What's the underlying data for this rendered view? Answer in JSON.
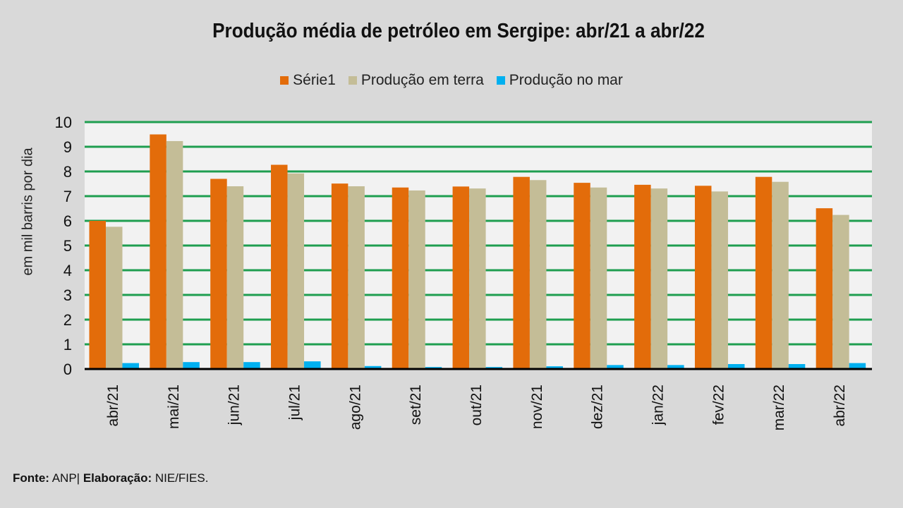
{
  "chart_data": {
    "type": "bar",
    "title": "Produção média de petróleo em Sergipe:  abr/21 a abr/22",
    "xlabel": "",
    "ylabel": "em mil barris por dia",
    "ylim": [
      0,
      10
    ],
    "yticks": [
      "0",
      "1",
      "2",
      "3",
      "4",
      "5",
      "6",
      "7",
      "8",
      "9",
      "10"
    ],
    "grid": true,
    "legend_position": "top",
    "categories": [
      "abr/21",
      "mai/21",
      "jun/21",
      "jul/21",
      "ago/21",
      "set/21",
      "out/21",
      "nov/21",
      "dez/21",
      "jan/22",
      "fev/22",
      "mar/22",
      "abr/22"
    ],
    "series": [
      {
        "name": "Série1",
        "color": "#e36c0a",
        "values": [
          6.0,
          9.5,
          7.7,
          8.27,
          7.51,
          7.35,
          7.39,
          7.78,
          7.54,
          7.46,
          7.42,
          7.78,
          6.51
        ]
      },
      {
        "name": "Produção em terra",
        "color": "#c4bd97",
        "values": [
          5.76,
          9.23,
          7.4,
          7.92,
          7.4,
          7.23,
          7.31,
          7.65,
          7.35,
          7.31,
          7.19,
          7.58,
          6.24
        ]
      },
      {
        "name": "Produção no mar",
        "color": "#00b0f0",
        "values": [
          0.24,
          0.28,
          0.28,
          0.31,
          0.12,
          0.08,
          0.08,
          0.11,
          0.16,
          0.16,
          0.2,
          0.2,
          0.24
        ]
      }
    ]
  },
  "footer": {
    "fonte_label": "Fonte:",
    "fonte_value": " ANP| ",
    "elab_label": "Elaboração:",
    "elab_value": " NIE/FIES."
  }
}
